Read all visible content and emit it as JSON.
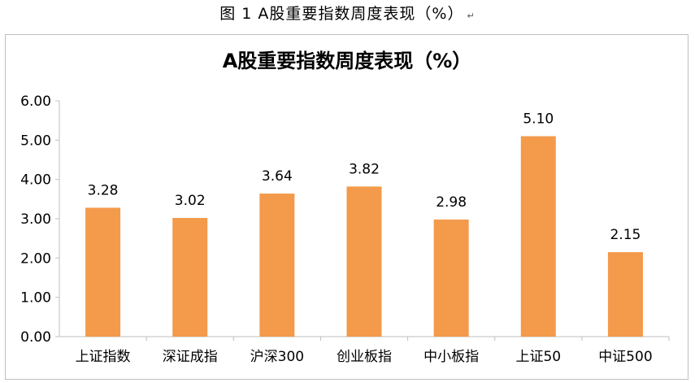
{
  "caption": {
    "text": "图 1 A股重要指数周度表现（%）",
    "mark": "↵"
  },
  "chart_data": {
    "type": "bar",
    "title": "A股重要指数周度表现（%）",
    "categories": [
      "上证指数",
      "深证成指",
      "沪深300",
      "创业板指",
      "中小板指",
      "上证50",
      "中证500"
    ],
    "values": [
      3.28,
      3.02,
      3.64,
      3.82,
      2.98,
      5.1,
      2.15
    ],
    "value_labels": [
      "3.28",
      "3.02",
      "3.64",
      "3.82",
      "2.98",
      "5.10",
      "2.15"
    ],
    "yticks": [
      "0.00",
      "1.00",
      "2.00",
      "3.00",
      "4.00",
      "5.00",
      "6.00"
    ],
    "ylim": [
      0,
      6
    ],
    "xlabel": "",
    "ylabel": "",
    "grid": false,
    "legend": "none",
    "bar_color": "#F39A4B"
  }
}
